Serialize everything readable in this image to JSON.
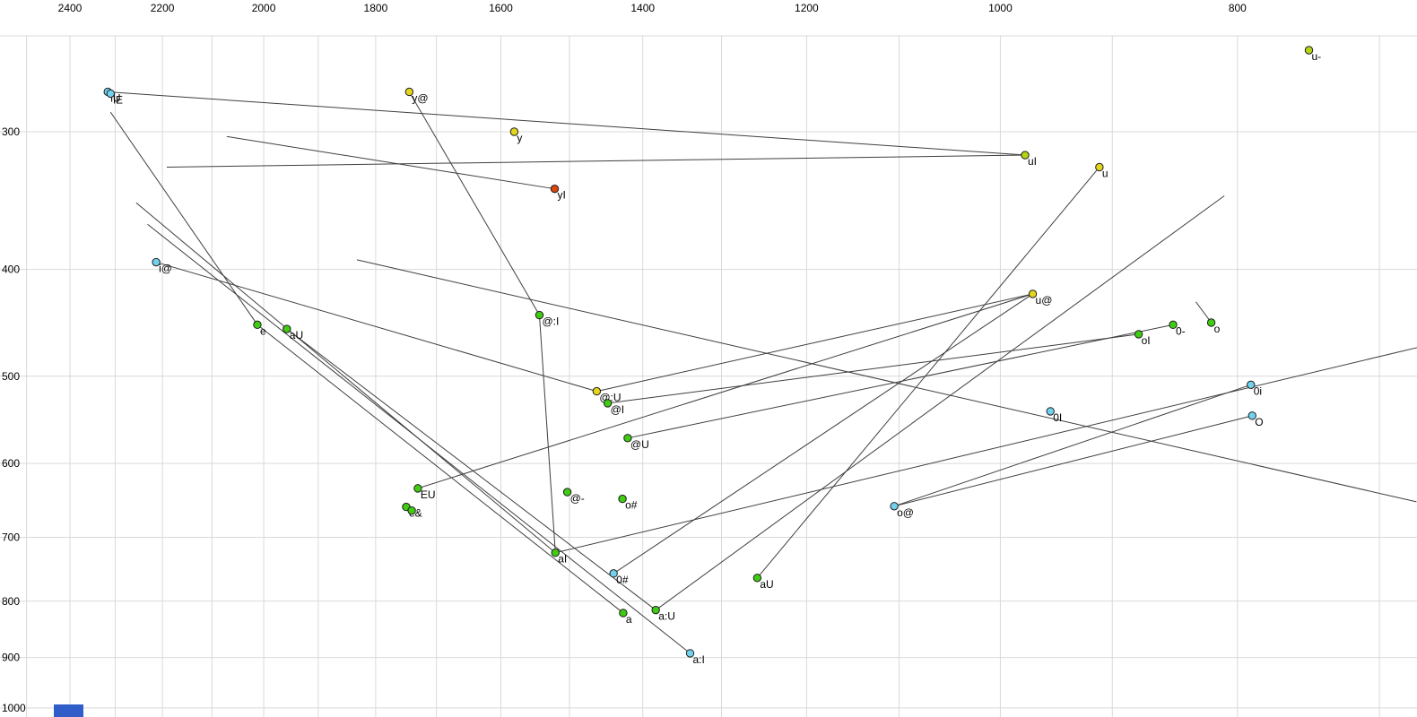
{
  "chart_data": {
    "type": "scatter",
    "title": "",
    "xlabel": "",
    "ylabel": "",
    "grid": true,
    "x_axis": {
      "position": "top",
      "scale": "log",
      "reversed": true,
      "range": [
        2500,
        676
      ],
      "ticks": [
        2400,
        2200,
        2000,
        1800,
        1600,
        1400,
        1200,
        1000,
        800
      ],
      "gridline_step": 100
    },
    "y_axis": {
      "position": "left",
      "scale": "log",
      "inverted": true,
      "range": [
        245,
        1010
      ],
      "ticks": [
        300,
        400,
        500,
        600,
        700,
        800,
        900,
        1000
      ],
      "gridline_step": 100
    },
    "points": [
      {
        "label": "u-",
        "f2": 748,
        "f1": 253,
        "c": "yellowgreen"
      },
      {
        "label": "iU",
        "f2": 2316,
        "f1": 276,
        "c": "cyan"
      },
      {
        "label": "iE",
        "f2": 2310,
        "f1": 277,
        "c": "cyan"
      },
      {
        "label": "y@",
        "f2": 1744,
        "f1": 276,
        "c": "yellow"
      },
      {
        "label": "y",
        "f2": 1580,
        "f1": 300,
        "c": "yellow"
      },
      {
        "label": "uI",
        "f2": 977,
        "f1": 315,
        "c": "yellowgreen"
      },
      {
        "label": "u",
        "f2": 911,
        "f1": 323,
        "c": "yellow"
      },
      {
        "label": "yI",
        "f2": 1521,
        "f1": 338,
        "c": "red"
      },
      {
        "label": "i@",
        "f2": 2213,
        "f1": 394,
        "c": "cyan"
      },
      {
        "label": "u@",
        "f2": 970,
        "f1": 421,
        "c": "yellow"
      },
      {
        "label": "0-",
        "f2": 850,
        "f1": 449,
        "c": "green"
      },
      {
        "label": "o",
        "f2": 820,
        "f1": 447,
        "c": "green"
      },
      {
        "label": "oI",
        "f2": 878,
        "f1": 458,
        "c": "green"
      },
      {
        "label": "e",
        "f2": 2012,
        "f1": 449,
        "c": "green"
      },
      {
        "label": "aU",
        "f2": 1957,
        "f1": 453,
        "c": "green"
      },
      {
        "label": "@:I",
        "f2": 1543,
        "f1": 440,
        "c": "green"
      },
      {
        "label": "@:U",
        "f2": 1462,
        "f1": 516,
        "c": "yellow"
      },
      {
        "label": "@I",
        "f2": 1447,
        "f1": 529,
        "c": "green"
      },
      {
        "label": "@U",
        "f2": 1420,
        "f1": 569,
        "c": "green"
      },
      {
        "label": "0I",
        "f2": 954,
        "f1": 538,
        "c": "cyan"
      },
      {
        "label": "0i",
        "f2": 790,
        "f1": 509,
        "c": "cyan"
      },
      {
        "label": "O",
        "f2": 789,
        "f1": 543,
        "c": "cyan"
      },
      {
        "label": "EU",
        "f2": 1730,
        "f1": 632,
        "c": "green"
      },
      {
        "label": "e&",
        "f2": 1749,
        "f1": 657,
        "c": "green"
      },
      {
        "label": "",
        "f2": 1740,
        "f1": 662,
        "c": "green"
      },
      {
        "label": "@-",
        "f2": 1503,
        "f1": 637,
        "c": "green"
      },
      {
        "label": "o#",
        "f2": 1427,
        "f1": 646,
        "c": "green"
      },
      {
        "label": "o@",
        "f2": 1105,
        "f1": 656,
        "c": "cyan"
      },
      {
        "label": "aI",
        "f2": 1520,
        "f1": 723,
        "c": "green"
      },
      {
        "label": "0#",
        "f2": 1439,
        "f1": 755,
        "c": "cyan"
      },
      {
        "label": "aU",
        "f2": 1257,
        "f1": 762,
        "c": "green"
      },
      {
        "label": "a:U",
        "f2": 1383,
        "f1": 815,
        "c": "green"
      },
      {
        "label": "a",
        "f2": 1426,
        "f1": 820,
        "c": "green"
      },
      {
        "label": "a:I",
        "f2": 1339,
        "f1": 892,
        "c": "cyan"
      }
    ],
    "lines": [
      [
        2316,
        276,
        977,
        315
      ],
      [
        977,
        315,
        2191,
        323
      ],
      [
        1521,
        338,
        2071,
        303
      ],
      [
        1744,
        276,
        1543,
        440
      ],
      [
        1543,
        440,
        1520,
        723
      ],
      [
        2213,
        394,
        1462,
        516
      ],
      [
        2310,
        288,
        2012,
        449
      ],
      [
        1520,
        723,
        2255,
        348
      ],
      [
        1339,
        892,
        2231,
        364
      ],
      [
        1383,
        815,
        810,
        343
      ],
      [
        1257,
        762,
        911,
        323
      ],
      [
        1439,
        755,
        970,
        421
      ],
      [
        1420,
        569,
        850,
        449
      ],
      [
        1447,
        529,
        878,
        458
      ],
      [
        1462,
        516,
        970,
        421
      ],
      [
        1105,
        656,
        790,
        509
      ],
      [
        1105,
        656,
        789,
        543
      ],
      [
        1730,
        632,
        970,
        421
      ],
      [
        2012,
        449,
        1426,
        820
      ],
      [
        1957,
        453,
        1383,
        815
      ],
      [
        820,
        447,
        832,
        428
      ],
      [
        1520,
        723,
        673,
        470
      ],
      [
        1832,
        392,
        676,
        650
      ]
    ]
  },
  "palette": {
    "green": "#3fcc12",
    "yellow": "#e3d51c",
    "yellowgreen": "#b6d414",
    "cyan": "#72d2ee",
    "red": "#e0450e",
    "grid": "#d9d9d9",
    "trace": "#3f3f3f"
  },
  "marker": {
    "color": "#2f5ec8"
  }
}
